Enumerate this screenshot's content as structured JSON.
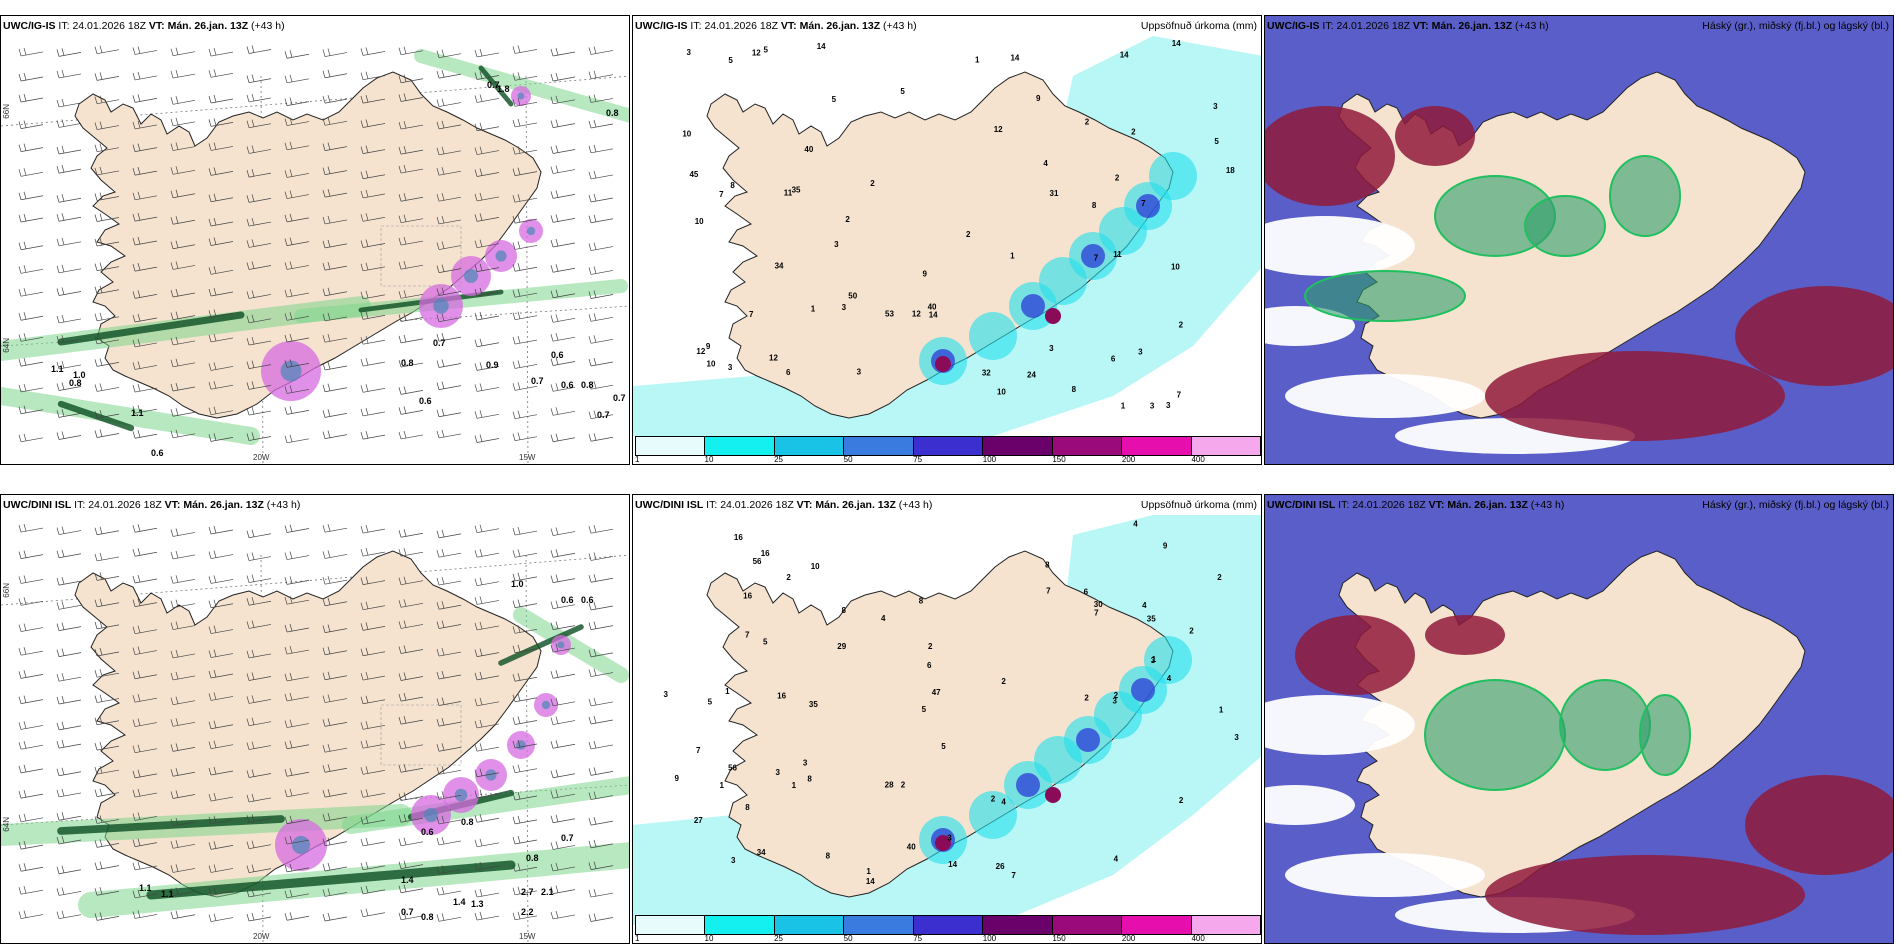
{
  "rows": [
    {
      "model": "UWC/IG-IS",
      "it_label": "IT:",
      "it_value": "24.01.2026 18Z",
      "vt_label": "VT:",
      "vt_value": "Mán. 26.jan. 13Z",
      "lead": "(+43 h)",
      "precip_title": "Uppsöfnuð úrkoma (mm)",
      "cloud_title": "Háský (gr.), miðský (fj.bl.) og lágský (bl.)",
      "precip_values": [
        "9",
        "11",
        "12",
        "11",
        "3",
        "5",
        "12",
        "3",
        "3",
        "8",
        "7",
        "1",
        "3",
        "1",
        "2",
        "3",
        "2",
        "18",
        "3",
        "2",
        "3",
        "35",
        "24",
        "1",
        "3",
        "31",
        "32",
        "9",
        "2",
        "12",
        "50",
        "53",
        "3",
        "2",
        "2",
        "45",
        "8",
        "5",
        "34",
        "3",
        "10",
        "7",
        "10",
        "8",
        "14",
        "10",
        "40",
        "40",
        "14",
        "9",
        "10",
        "2",
        "1",
        "14",
        "5",
        "4",
        "6",
        "5",
        "7",
        "12",
        "14",
        "5",
        "10",
        "7",
        "6",
        "7",
        "14",
        "12"
      ],
      "wind_values": [
        "0.7",
        "1.8",
        "0.8",
        "1.1",
        "1.0",
        "0.8",
        "1.1",
        "0.6",
        "0.7",
        "0.8",
        "0.9",
        "0.6",
        "0.7",
        "0.6",
        "0.6",
        "0.8",
        "0.7",
        "0.7"
      ],
      "lon_labels": [
        "20W",
        "15W"
      ],
      "lat_labels": [
        "66N",
        "64N"
      ]
    },
    {
      "model": "UWC/DINI ISL",
      "it_label": "IT:",
      "it_value": "24.01.2026 18Z",
      "vt_label": "VT:",
      "vt_value": "Mán. 26.jan. 13Z",
      "lead": "(+43 h)",
      "precip_title": "Uppsöfnuð úrkoma (mm)",
      "cloud_title": "Háský (gr.), miðský (fj.bl.) og lágský (bl.)",
      "precip_values": [
        "2",
        "4",
        "2",
        "5",
        "3",
        "4",
        "5",
        "3",
        "2",
        "1",
        "1",
        "2",
        "1",
        "2",
        "3",
        "2",
        "4",
        "2",
        "1",
        "2",
        "2",
        "16",
        "3",
        "3",
        "28",
        "2",
        "40",
        "5",
        "9",
        "35",
        "1",
        "14",
        "14",
        "6",
        "56",
        "29",
        "56",
        "7",
        "9",
        "47",
        "8",
        "3",
        "3",
        "35",
        "1",
        "27",
        "16",
        "16",
        "3",
        "30",
        "8",
        "34",
        "8",
        "4",
        "4",
        "16",
        "7",
        "6",
        "7",
        "26",
        "10",
        "8",
        "8",
        "7",
        "8",
        "5",
        "4",
        "7"
      ],
      "wind_values": [
        "1.0",
        "0.6",
        "0.6",
        "1.1",
        "1.1",
        "0.8",
        "0.6",
        "0.7",
        "0.8",
        "1.4",
        "2.7",
        "2.1",
        "1.4",
        "0.7",
        "0.8",
        "2.2",
        "1.3"
      ],
      "lon_labels": [
        "20W",
        "15W"
      ],
      "lat_labels": [
        "66N",
        "64N"
      ]
    }
  ],
  "colorbar": {
    "ticks": [
      "1",
      "10",
      "25",
      "50",
      "75",
      "100",
      "150",
      "200",
      "400"
    ],
    "colors": [
      "#e8fbfc",
      "#14f0f0",
      "#19c3e6",
      "#3a7be0",
      "#3b2fd0",
      "#6a006a",
      "#9b0a7a",
      "#e60fae",
      "#f5a8ec"
    ]
  },
  "colors": {
    "land": "#f5e3d0",
    "precip_light": "#b9f6f6",
    "precip_mid": "#22e0ec",
    "precip_heavy": "#2b3bd6",
    "precip_extreme": "#8a0b57",
    "high_cloud": "#5a5ec8",
    "mid_cloud": "#2e9e6a",
    "low_cloud": "#8f1a3a",
    "snow_green": "#7cd68a",
    "snow_dark": "#0b4d22",
    "pink_precip": "#d56be0"
  }
}
